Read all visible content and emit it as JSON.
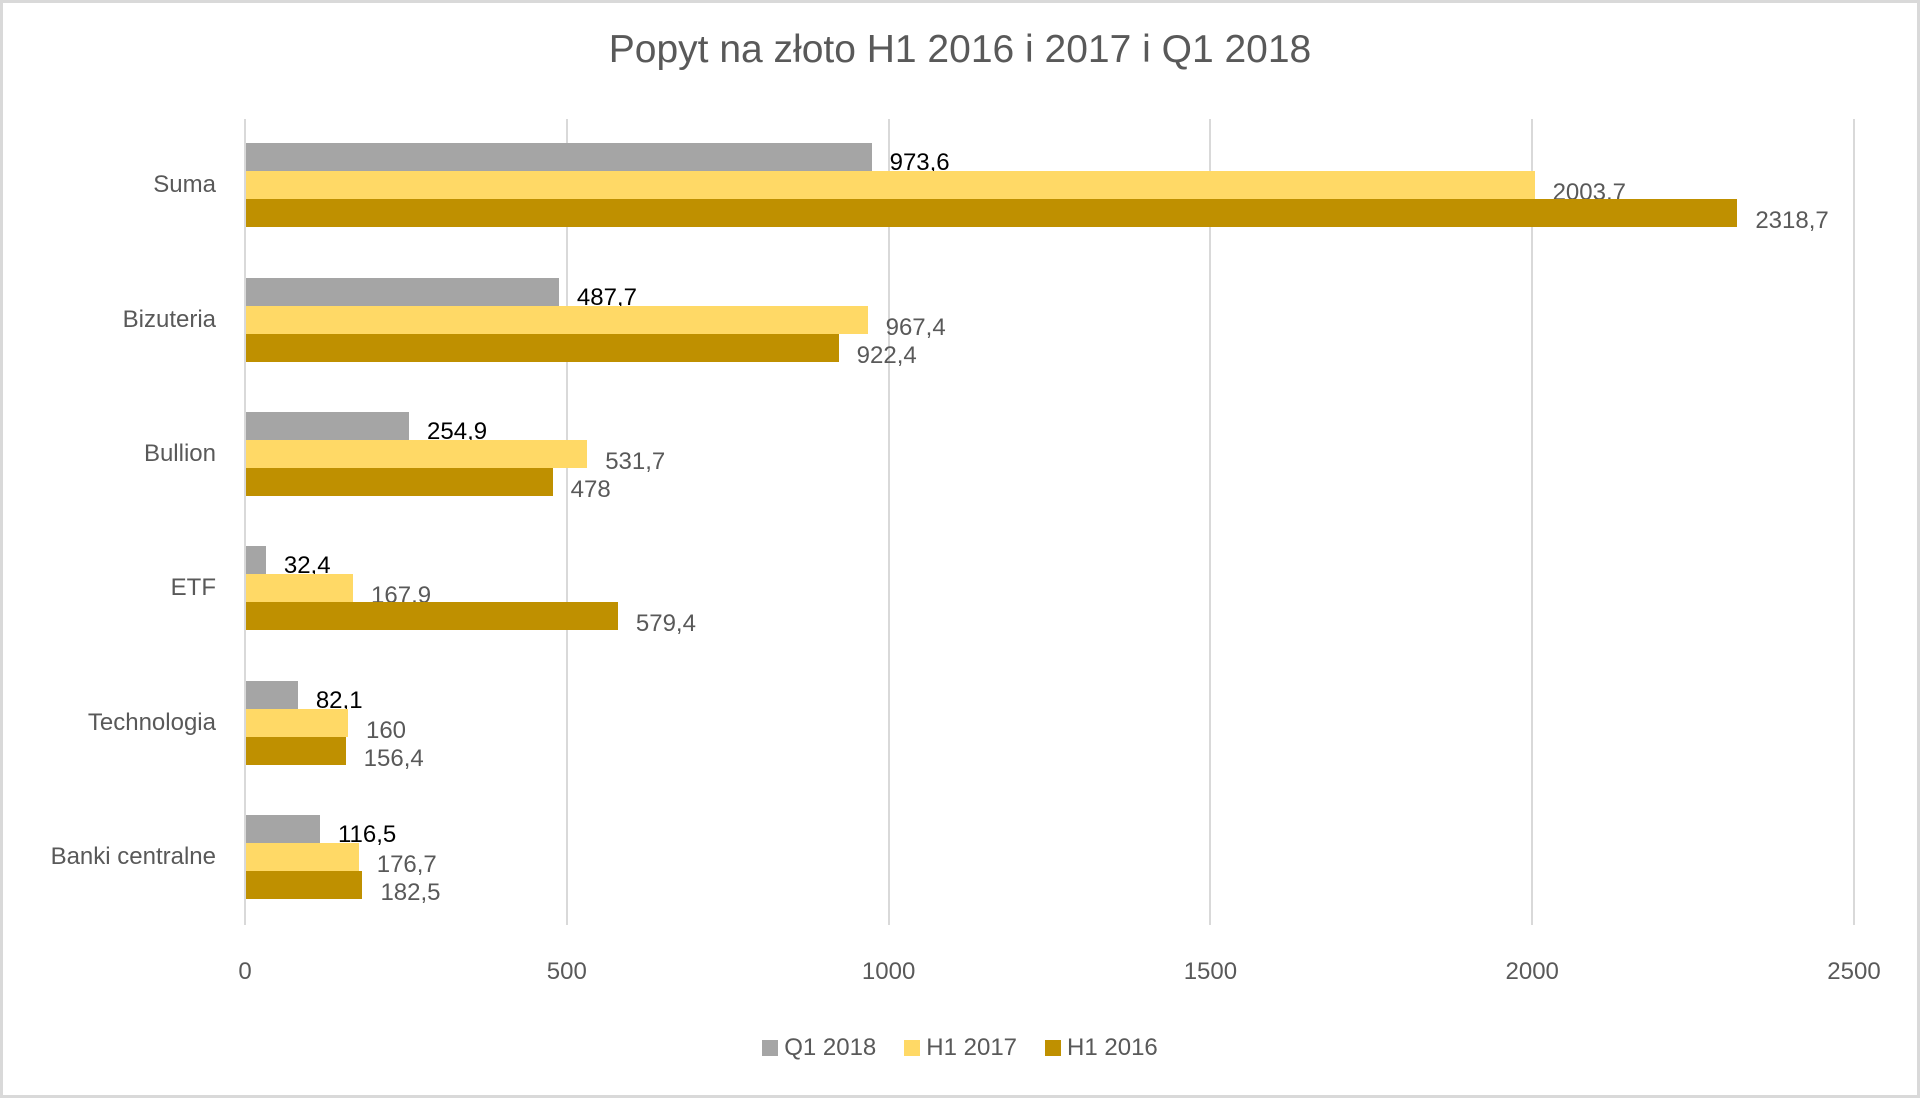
{
  "chart_data": {
    "type": "bar",
    "orientation": "horizontal",
    "title": "Popyt na złoto H1 2016 i 2017 i Q1 2018",
    "xlabel": "",
    "ylabel": "",
    "xlim": [
      0,
      2500
    ],
    "x_ticks": [
      "0",
      "500",
      "1000",
      "1500",
      "2000",
      "2500"
    ],
    "grid": true,
    "legend_position": "bottom",
    "categories": [
      "Suma",
      "Bizuteria",
      "Bullion",
      "ETF",
      "Technologia",
      "Banki centralne"
    ],
    "series": [
      {
        "name": "Q1 2018",
        "color": "#a5a5a5",
        "label_color": "#000000",
        "values": [
          973.6,
          487.7,
          254.9,
          32.4,
          82.1,
          116.5
        ],
        "labels": [
          "973,6",
          "487,7",
          "254,9",
          "32,4",
          "82,1",
          "116,5"
        ]
      },
      {
        "name": "H1 2017",
        "color": "#ffd966",
        "label_color": "#595959",
        "values": [
          2003.7,
          967.4,
          531.7,
          167.9,
          160,
          176.7
        ],
        "labels": [
          "2003,7",
          "967,4",
          "531,7",
          "167,9",
          "160",
          "176,7"
        ]
      },
      {
        "name": "H1 2016",
        "color": "#bf9000",
        "label_color": "#595959",
        "values": [
          2318.7,
          922.4,
          478,
          579.4,
          156.4,
          182.5
        ],
        "labels": [
          "2318,7",
          "922,4",
          "478",
          "579,4",
          "156,4",
          "182,5"
        ]
      }
    ]
  }
}
